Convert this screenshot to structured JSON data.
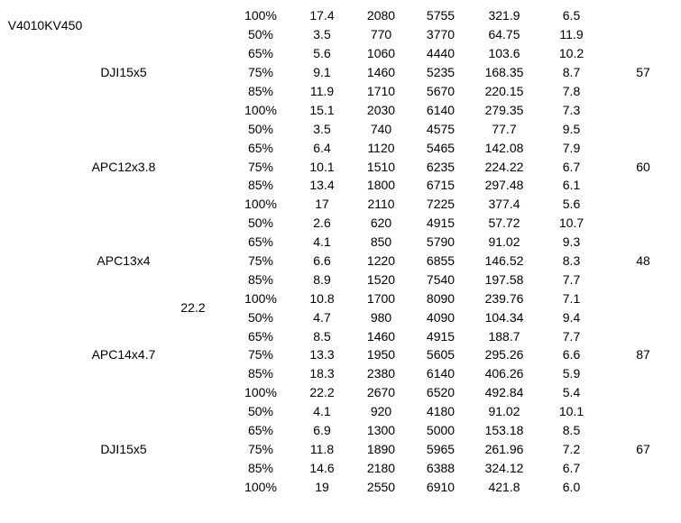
{
  "colors": {
    "background": "#ffffff",
    "text": "#000000"
  },
  "table": {
    "motor_label": "V4010KV450",
    "voltage_label": "22.2",
    "rows": [
      {
        "prop": "",
        "cells": [
          "100%",
          "17.4",
          "2080",
          "5755",
          "321.9",
          "6.5"
        ],
        "temp": ""
      },
      {
        "prop": "",
        "cells": [
          "50%",
          "3.5",
          "770",
          "3770",
          "64.75",
          "11.9"
        ],
        "temp": ""
      },
      {
        "prop": "",
        "cells": [
          "65%",
          "5.6",
          "1060",
          "4440",
          "103.6",
          "10.2"
        ],
        "temp": ""
      },
      {
        "prop": "DJI15x5",
        "cells": [
          "75%",
          "9.1",
          "1460",
          "5235",
          "168.35",
          "8.7"
        ],
        "temp": "57"
      },
      {
        "prop": "",
        "cells": [
          "85%",
          "11.9",
          "1710",
          "5670",
          "220.15",
          "7.8"
        ],
        "temp": ""
      },
      {
        "prop": "",
        "cells": [
          "100%",
          "15.1",
          "2030",
          "6140",
          "279.35",
          "7.3"
        ],
        "temp": ""
      },
      {
        "prop": "",
        "cells": [
          "50%",
          "3.5",
          "740",
          "4575",
          "77.7",
          "9.5"
        ],
        "temp": ""
      },
      {
        "prop": "",
        "cells": [
          "65%",
          "6.4",
          "1120",
          "5465",
          "142.08",
          "7.9"
        ],
        "temp": ""
      },
      {
        "prop": "APC12x3.8",
        "cells": [
          "75%",
          "10.1",
          "1510",
          "6235",
          "224.22",
          "6.7"
        ],
        "temp": "60"
      },
      {
        "prop": "",
        "cells": [
          "85%",
          "13.4",
          "1800",
          "6715",
          "297.48",
          "6.1"
        ],
        "temp": ""
      },
      {
        "prop": "",
        "cells": [
          "100%",
          "17",
          "2110",
          "7225",
          "377.4",
          "5.6"
        ],
        "temp": ""
      },
      {
        "prop": "",
        "cells": [
          "50%",
          "2.6",
          "620",
          "4915",
          "57.72",
          "10.7"
        ],
        "temp": ""
      },
      {
        "prop": "",
        "cells": [
          "65%",
          "4.1",
          "850",
          "5790",
          "91.02",
          "9.3"
        ],
        "temp": ""
      },
      {
        "prop": "APC13x4",
        "cells": [
          "75%",
          "6.6",
          "1220",
          "6855",
          "146.52",
          "8.3"
        ],
        "temp": "48"
      },
      {
        "prop": "",
        "cells": [
          "85%",
          "8.9",
          "1520",
          "7540",
          "197.58",
          "7.7"
        ],
        "temp": ""
      },
      {
        "prop": "",
        "cells": [
          "100%",
          "10.8",
          "1700",
          "8090",
          "239.76",
          "7.1"
        ],
        "temp": ""
      },
      {
        "prop": "",
        "cells": [
          "50%",
          "4.7",
          "980",
          "4090",
          "104.34",
          "9.4"
        ],
        "temp": ""
      },
      {
        "prop": "",
        "cells": [
          "65%",
          "8.5",
          "1460",
          "4915",
          "188.7",
          "7.7"
        ],
        "temp": ""
      },
      {
        "prop": "APC14x4.7",
        "cells": [
          "75%",
          "13.3",
          "1950",
          "5605",
          "295.26",
          "6.6"
        ],
        "temp": "87"
      },
      {
        "prop": "",
        "cells": [
          "85%",
          "18.3",
          "2380",
          "6140",
          "406.26",
          "5.9"
        ],
        "temp": ""
      },
      {
        "prop": "",
        "cells": [
          "100%",
          "22.2",
          "2670",
          "6520",
          "492.84",
          "5.4"
        ],
        "temp": ""
      },
      {
        "prop": "",
        "cells": [
          "50%",
          "4.1",
          "920",
          "4180",
          "91.02",
          "10.1"
        ],
        "temp": ""
      },
      {
        "prop": "",
        "cells": [
          "65%",
          "6.9",
          "1300",
          "5000",
          "153.18",
          "8.5"
        ],
        "temp": ""
      },
      {
        "prop": "DJI15x5",
        "cells": [
          "75%",
          "11.8",
          "1890",
          "5965",
          "261.96",
          "7.2"
        ],
        "temp": "67"
      },
      {
        "prop": "",
        "cells": [
          "85%",
          "14.6",
          "2180",
          "6388",
          "324.12",
          "6.7"
        ],
        "temp": ""
      },
      {
        "prop": "",
        "cells": [
          "100%",
          "19",
          "2550",
          "6910",
          "421.8",
          "6.0"
        ],
        "temp": ""
      }
    ]
  }
}
